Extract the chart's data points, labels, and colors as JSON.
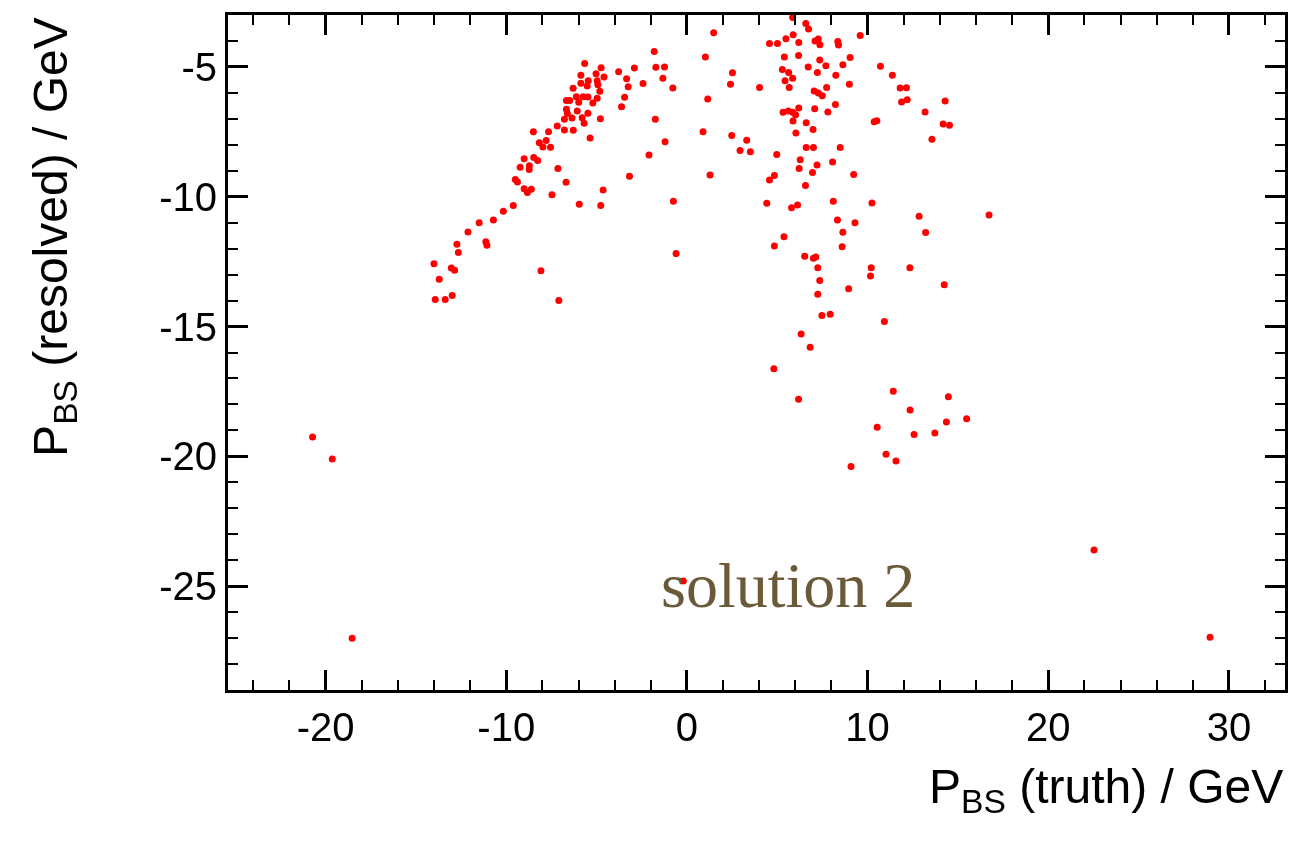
{
  "chart_data": {
    "type": "scatter",
    "xlabel": "P$_{BS}$ (truth) / GeV",
    "ylabel": "P$_{BS}$ (resolved) / GeV",
    "annotations": [
      "solution 2"
    ],
    "xlim": [
      -25.4,
      33.1
    ],
    "ylim": [
      -29,
      -3
    ],
    "xticks": [
      -20,
      -10,
      0,
      10,
      20,
      30
    ],
    "yticks": [
      -25,
      -20,
      -15,
      -10,
      -5
    ],
    "marker": "circle",
    "series": [
      {
        "color": "#ff0000",
        "x": [
          1.48,
          -1.81,
          1.02,
          -5.66,
          -4.75,
          -1.72,
          -1.24,
          -2.91,
          -3.78,
          -5.87,
          -5.03,
          -4.59,
          -3.34,
          -1.33,
          -2.43,
          -4.97,
          -5.46,
          -5.87,
          -5.52,
          -4.93,
          -3.25,
          -0.78,
          -6.3,
          -4.82,
          -5.74,
          -5.48,
          -6.12,
          -6.49,
          -6.67,
          -5.99,
          -4.97,
          -5.21,
          -3.45,
          1.15,
          -3.62,
          -6.67,
          -6.62,
          -6.07,
          -5.48,
          -6.36,
          -6.78,
          -5.8,
          -4.79,
          -1.75,
          -5.69,
          -7.18,
          -6.78,
          -6.29,
          -8.5,
          -7.66,
          0.89,
          -5.36,
          -8.17,
          -7.79,
          -7.97,
          -7.55,
          -1.21,
          -2.1,
          -9.01,
          -8.48,
          -8.26,
          -9.23,
          -8.72,
          -8.73,
          -7.14,
          -9.5,
          -9.38,
          -3.18,
          1.28,
          -6.69,
          -9.01,
          -8.61,
          -8.83,
          -7.47,
          -4.64,
          -5.96,
          -4.77,
          -0.75,
          -9.61,
          -10.16,
          -10.71,
          -11.5,
          -12.12,
          -12.73,
          -12.65,
          -11.13,
          -11.07,
          -0.6,
          -14.0,
          -13.04,
          -12.86,
          -8.08,
          -13.71,
          -13.93,
          -13.38,
          -12.99,
          -7.09,
          5.85,
          6.58,
          6.73,
          4.57,
          5.01,
          5.48,
          5.88,
          6.19,
          7.09,
          7.27,
          7.36,
          8.35,
          8.39,
          9.59,
          5.39,
          6.18,
          7.35,
          9.03,
          2.52,
          2.41,
          4.02,
          5.28,
          5.63,
          5.85,
          5.43,
          5.66,
          6.71,
          7.22,
          7.69,
          8.63,
          8.24,
          8.99,
          7.73,
          10.71,
          11.37,
          11.8,
          12.15,
          11.88,
          12.19,
          14.29,
          13.18,
          14.18,
          14.53,
          13.56,
          10.36,
          10.51,
          7.04,
          7.27,
          7.49,
          6.19,
          5.32,
          5.61,
          5.85,
          6.01,
          5.87,
          7.07,
          7.8,
          8.22,
          6.6,
          6.98,
          6.03,
          2.48,
          3.31,
          2.94,
          3.51,
          4.97,
          6.6,
          7.0,
          8.48,
          6.27,
          6.21,
          7.2,
          8.06,
          6.95,
          9.23,
          4.84,
          4.57,
          6.56,
          4.42,
          5.79,
          6.12,
          8.1,
          10.24,
          12.85,
          16.72,
          8.33,
          9.3,
          5.37,
          4.84,
          8.63,
          13.21,
          8.59,
          6.52,
          7.0,
          7.13,
          7.24,
          10.2,
          10.16,
          12.34,
          7.35,
          14.24,
          7.24,
          8.95,
          7.47,
          7.93,
          10.93,
          6.32,
          6.82,
          4.81,
          6.18,
          11.42,
          14.47,
          12.35,
          15.48,
          14.36,
          10.53,
          12.57,
          13.72,
          11.02,
          11.57,
          9.08,
          -20.72,
          -19.63,
          -18.53,
          22.53,
          28.95,
          -0.2
        ],
        "values": [
          -3.68,
          -4.41,
          -4.62,
          -4.87,
          -5.03,
          -5.01,
          -5.0,
          -5.04,
          -5.19,
          -5.32,
          -5.26,
          -5.39,
          -5.46,
          -5.44,
          -5.64,
          -5.53,
          -5.53,
          -5.63,
          -5.73,
          -5.69,
          -5.76,
          -5.81,
          -5.82,
          -5.94,
          -6.15,
          -6.16,
          -6.15,
          -6.29,
          -6.29,
          -6.36,
          -6.21,
          -6.39,
          -6.17,
          -6.24,
          -6.53,
          -6.63,
          -6.79,
          -6.7,
          -6.78,
          -6.97,
          -7.02,
          -6.96,
          -7.0,
          -7.02,
          -7.17,
          -7.28,
          -7.43,
          -7.44,
          -7.5,
          -7.5,
          -7.5,
          -7.74,
          -7.92,
          -7.83,
          -8.08,
          -8.09,
          -7.88,
          -8.39,
          -8.54,
          -8.49,
          -8.6,
          -8.86,
          -8.81,
          -8.95,
          -8.91,
          -9.34,
          -9.43,
          -9.21,
          -9.16,
          -9.44,
          -9.69,
          -9.71,
          -9.84,
          -9.92,
          -9.74,
          -10.29,
          -10.34,
          -10.17,
          -10.34,
          -10.56,
          -10.9,
          -11.0,
          -11.36,
          -11.83,
          -12.15,
          -11.73,
          -11.87,
          -12.19,
          -12.58,
          -12.75,
          -12.83,
          -12.85,
          -13.18,
          -13.96,
          -13.96,
          -13.8,
          -14.0,
          -3.1,
          -3.33,
          -3.54,
          -4.1,
          -4.1,
          -3.91,
          -3.76,
          -4.06,
          -4.0,
          -3.92,
          -4.15,
          -4.02,
          -4.16,
          -3.79,
          -4.62,
          -4.56,
          -4.73,
          -4.64,
          -5.22,
          -5.67,
          -5.79,
          -5.1,
          -5.21,
          -5.44,
          -5.53,
          -5.79,
          -5.0,
          -5.21,
          -4.95,
          -4.92,
          -5.32,
          -5.67,
          -5.79,
          -4.97,
          -5.32,
          -5.81,
          -5.8,
          -6.35,
          -6.26,
          -6.31,
          -6.74,
          -7.2,
          -7.25,
          -7.79,
          -7.11,
          -7.07,
          -5.93,
          -6.0,
          -6.11,
          -6.58,
          -6.75,
          -6.7,
          -6.75,
          -6.84,
          -7.08,
          -6.61,
          -6.74,
          -6.45,
          -7.15,
          -7.41,
          -7.55,
          -7.64,
          -7.82,
          -8.22,
          -8.27,
          -8.37,
          -8.1,
          -8.1,
          -8.1,
          -8.58,
          -8.91,
          -8.78,
          -8.66,
          -9.07,
          -9.14,
          -9.18,
          -9.36,
          -9.57,
          -10.25,
          -10.42,
          -10.32,
          -10.17,
          -10.24,
          -10.75,
          -10.7,
          -10.9,
          -11.0,
          -11.54,
          -11.9,
          -11.37,
          -11.38,
          -11.93,
          -12.29,
          -12.37,
          -12.32,
          -12.74,
          -12.74,
          -13.05,
          -12.74,
          -13.23,
          -13.39,
          -13.76,
          -13.54,
          -14.57,
          -14.53,
          -14.81,
          -15.29,
          -15.8,
          -16.63,
          -17.8,
          -17.49,
          -17.7,
          -18.21,
          -18.55,
          -18.68,
          -18.88,
          -19.16,
          -19.1,
          -19.92,
          -20.18,
          -20.39,
          -19.25,
          -20.1,
          -27.01,
          -23.61,
          -26.97,
          -24.8
        ]
      }
    ]
  }
}
